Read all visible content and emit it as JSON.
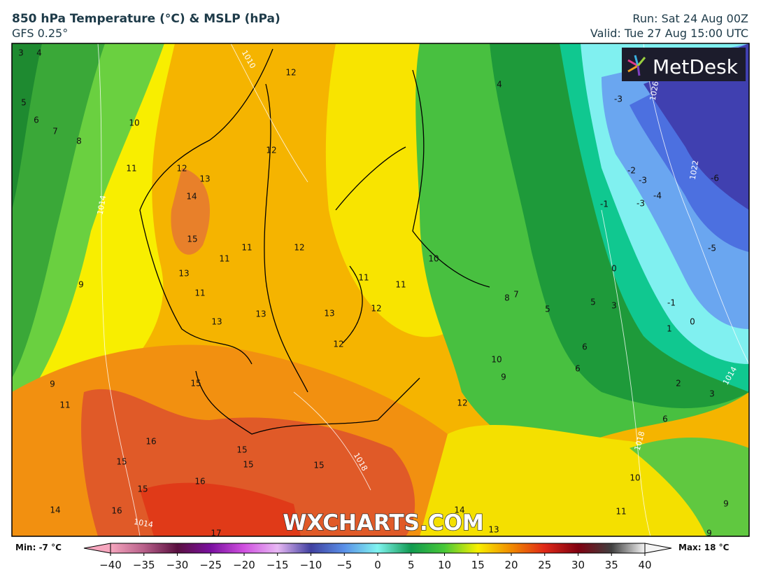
{
  "header": {
    "title": "850 hPa Temperature (°C) & MSLP (hPa)",
    "model": "GFS 0.25°",
    "run": "Run: Sat 24 Aug 00Z",
    "valid": "Valid: Tue 27 Aug 15:00 UTC"
  },
  "logo": "MetDesk",
  "watermark": "WXCHARTS.COM",
  "map": {
    "contour_labels": [
      "3",
      "4",
      "5",
      "6",
      "7",
      "8",
      "10",
      "11",
      "12",
      "13",
      "14",
      "15",
      "11",
      "11",
      "13",
      "11",
      "13",
      "9",
      "9",
      "11",
      "12",
      "12",
      "12",
      "13",
      "13",
      "11",
      "12",
      "11",
      "12",
      "10",
      "4",
      "-3",
      "-2",
      "-3",
      "-4",
      "-1",
      "-3",
      "-6",
      "-5",
      "0",
      "5",
      "3",
      "5",
      "8",
      "7",
      "-1",
      "0",
      "1",
      "6",
      "6",
      "10",
      "9",
      "2",
      "3",
      "6",
      "12",
      "15",
      "16",
      "15",
      "15",
      "15",
      "16",
      "15",
      "15",
      "16",
      "14",
      "14",
      "13",
      "10",
      "11",
      "9",
      "9",
      "17"
    ],
    "isobar_labels": [
      "1014",
      "1010",
      "1026",
      "1022",
      "1014",
      "1018",
      "1018",
      "1014"
    ]
  },
  "colorbar": {
    "min_label": "Min: -7 °C",
    "max_label": "Max: 18 °C",
    "range": [
      -40,
      40
    ],
    "ticks": [
      {
        "value": -40,
        "label": "−40"
      },
      {
        "value": -35,
        "label": "−35"
      },
      {
        "value": -30,
        "label": "−30"
      },
      {
        "value": -25,
        "label": "−25"
      },
      {
        "value": -20,
        "label": "−20"
      },
      {
        "value": -15,
        "label": "−15"
      },
      {
        "value": -10,
        "label": "−10"
      },
      {
        "value": -5,
        "label": "−5"
      },
      0,
      5,
      10,
      15,
      20,
      25,
      30,
      35,
      40
    ],
    "colors": [
      "#f6a6be",
      "#b8608a",
      "#5a1040",
      "#7a10a0",
      "#d050e0",
      "#e8b8f4",
      "#4040a0",
      "#5a90e8",
      "#80f4f0",
      "#109a50",
      "#48c838",
      "#f8f000",
      "#f08a00",
      "#e02818",
      "#800010",
      "#404040",
      "#f4f4f4"
    ]
  }
}
